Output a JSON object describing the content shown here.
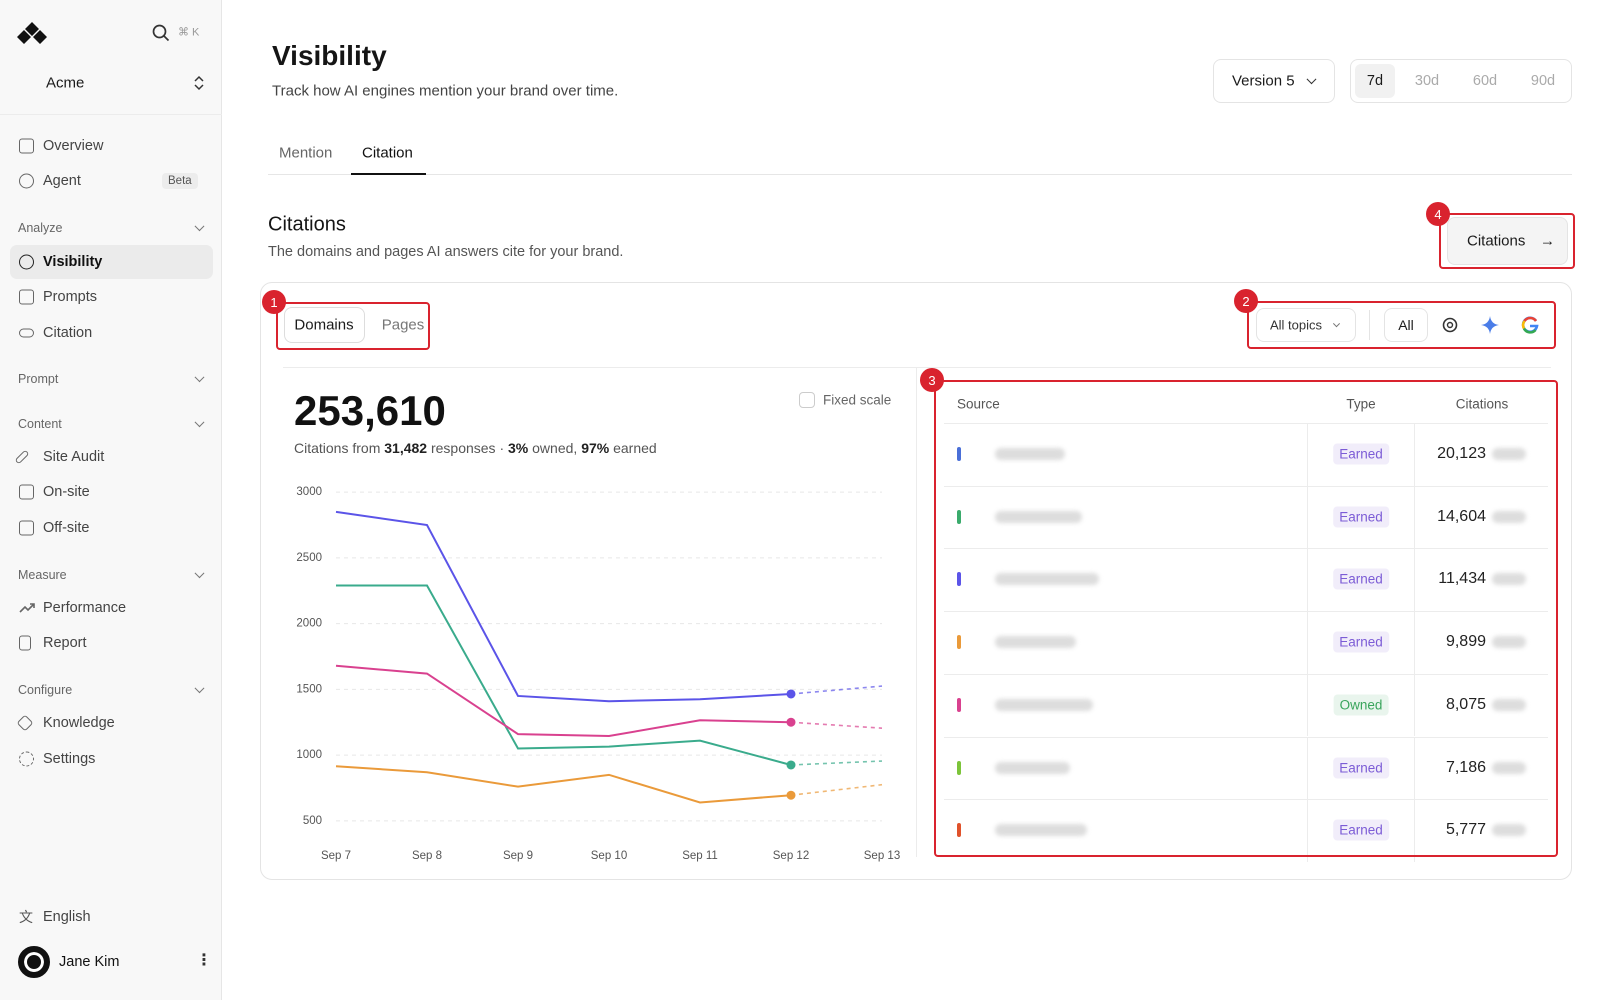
{
  "sidebar": {
    "brand": "Acme",
    "search_shortcut": "⌘ K",
    "top": [
      {
        "label": "Overview"
      },
      {
        "label": "Agent",
        "badge": "Beta"
      }
    ],
    "groups": [
      {
        "title": "Analyze",
        "items": [
          "Visibility",
          "Prompts",
          "Citation"
        ]
      },
      {
        "title": "Prompt"
      },
      {
        "title": "Content",
        "items": [
          "Site Audit",
          "On-site",
          "Off-site"
        ]
      },
      {
        "title": "Measure",
        "items": [
          "Performance",
          "Report"
        ]
      },
      {
        "title": "Configure",
        "items": [
          "Knowledge",
          "Settings"
        ]
      }
    ],
    "language": "English",
    "user": "Jane Kim"
  },
  "header": {
    "title": "Visibility",
    "subtitle": "Track how AI engines mention your brand over time.",
    "version": "Version 5",
    "ranges": [
      "7d",
      "30d",
      "60d",
      "90d"
    ]
  },
  "tabs": [
    "Mention",
    "Citation"
  ],
  "section": {
    "title": "Citations",
    "subtitle": "The domains and pages AI answers cite for your brand.",
    "button": "Citations"
  },
  "card": {
    "toggle": [
      "Domains",
      "Pages"
    ],
    "topics": "All topics",
    "engine_all": "All",
    "total": "253,610",
    "summary": [
      "Citations from ",
      "31,482",
      " responses · ",
      "3%",
      " owned, ",
      "97%",
      " earned"
    ],
    "fixed_scale": "Fixed scale"
  },
  "chart": {
    "type": "line",
    "x": [
      "Sep 7",
      "Sep 8",
      "Sep 9",
      "Sep 10",
      "Sep 11",
      "Sep 12",
      "Sep 13"
    ],
    "ylim": [
      400,
      3100
    ],
    "yticks": [
      500,
      1000,
      1500,
      2000,
      2500,
      3000
    ],
    "grid": true,
    "dashed_from": 5,
    "series": [
      {
        "color": "#5b54e8",
        "values": [
          2850,
          2750,
          1450,
          1410,
          1425,
          1465,
          1525
        ]
      },
      {
        "color": "#3aab8c",
        "values": [
          2290,
          2290,
          1050,
          1065,
          1110,
          925,
          955
        ]
      },
      {
        "color": "#d9418f",
        "values": [
          1680,
          1620,
          1160,
          1145,
          1265,
          1250,
          1205
        ]
      },
      {
        "color": "#ea9a3a",
        "values": [
          915,
          870,
          760,
          850,
          640,
          695,
          775
        ]
      }
    ]
  },
  "table": {
    "columns": [
      "Source",
      "Type",
      "Citations"
    ],
    "rows": [
      {
        "color": "#4a6fd8",
        "type": "Earned",
        "type_color": "#7c5cd6",
        "citations": "20,123"
      },
      {
        "color": "#3aab6c",
        "type": "Earned",
        "type_color": "#7c5cd6",
        "citations": "14,604"
      },
      {
        "color": "#5b54e8",
        "type": "Earned",
        "type_color": "#7c5cd6",
        "citations": "11,434"
      },
      {
        "color": "#ea9a3a",
        "type": "Earned",
        "type_color": "#7c5cd6",
        "citations": "9,899"
      },
      {
        "color": "#d9418f",
        "type": "Owned",
        "type_color": "#3aa55c",
        "citations": "8,075"
      },
      {
        "color": "#7cc43a",
        "type": "Earned",
        "type_color": "#7c5cd6",
        "citations": "7,186"
      },
      {
        "color": "#e0522b",
        "type": "Earned",
        "type_color": "#7c5cd6",
        "citations": "5,777"
      }
    ]
  },
  "annotations": [
    "1",
    "2",
    "3",
    "4"
  ]
}
